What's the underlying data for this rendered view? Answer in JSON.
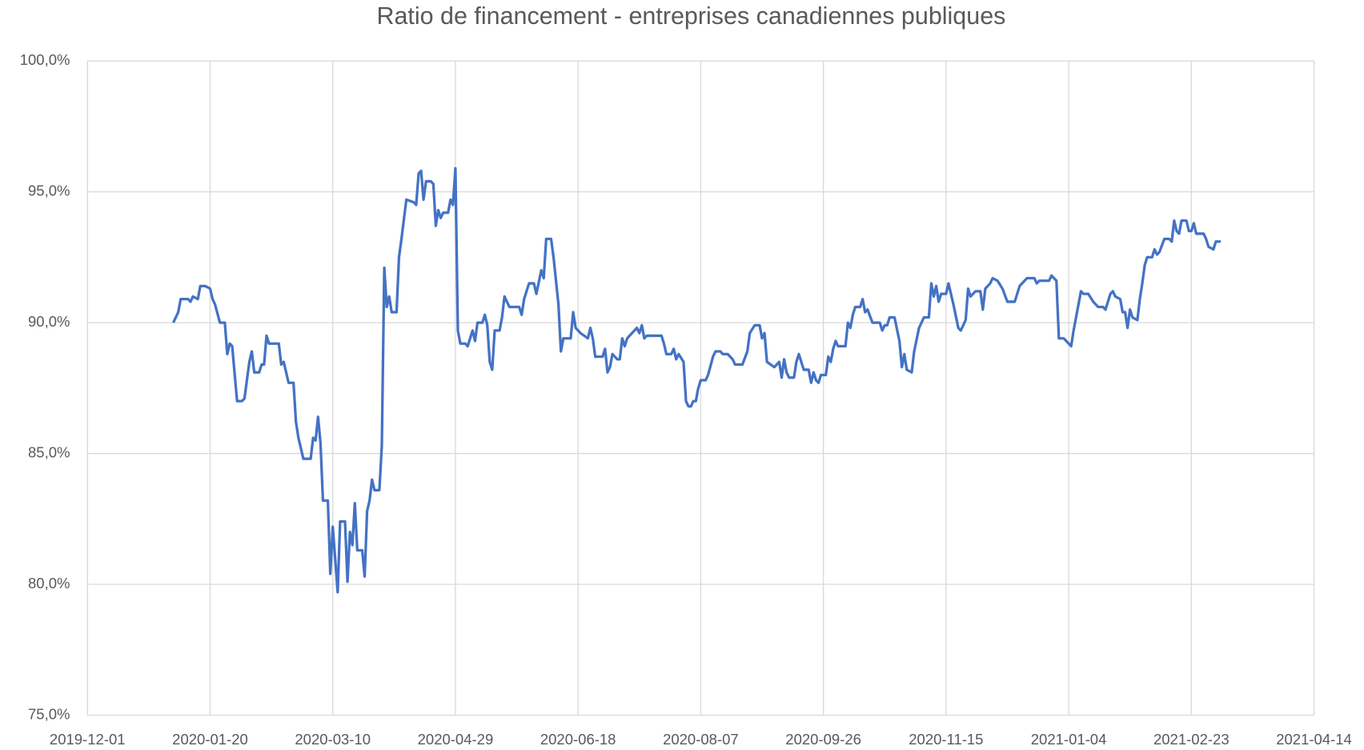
{
  "chart_data": {
    "type": "line",
    "title": "Ratio de financement - entreprises canadiennes publiques",
    "color": "#4472c4",
    "grid": true,
    "xlim": [
      "2019-12-01",
      "2021-04-14"
    ],
    "xticks": [
      "2019-12-01",
      "2020-01-20",
      "2020-03-10",
      "2020-04-29",
      "2020-06-18",
      "2020-08-07",
      "2020-09-26",
      "2020-11-15",
      "2021-01-04",
      "2021-02-23",
      "2021-04-14"
    ],
    "ylim": [
      75,
      100
    ],
    "yticks": [
      {
        "value": 75,
        "label": "75,0%"
      },
      {
        "value": 80,
        "label": "80,0%"
      },
      {
        "value": 85,
        "label": "85,0%"
      },
      {
        "value": 90,
        "label": "90,0%"
      },
      {
        "value": 95,
        "label": "95,0%"
      },
      {
        "value": 100,
        "label": "100,0%"
      }
    ],
    "x": [
      "2020-01-05",
      "2020-01-07",
      "2020-01-08",
      "2020-01-11",
      "2020-01-12",
      "2020-01-13",
      "2020-01-15",
      "2020-01-16",
      "2020-01-18",
      "2020-01-20",
      "2020-01-21",
      "2020-01-22",
      "2020-01-24",
      "2020-01-26",
      "2020-01-27",
      "2020-01-28",
      "2020-01-29",
      "2020-01-31",
      "2020-02-02",
      "2020-02-03",
      "2020-02-05",
      "2020-02-06",
      "2020-02-07",
      "2020-02-09",
      "2020-02-10",
      "2020-02-11",
      "2020-02-12",
      "2020-02-13",
      "2020-02-17",
      "2020-02-18",
      "2020-02-19",
      "2020-02-21",
      "2020-02-23",
      "2020-02-24",
      "2020-02-25",
      "2020-02-27",
      "2020-03-01",
      "2020-03-02",
      "2020-03-03",
      "2020-03-04",
      "2020-03-05",
      "2020-03-06",
      "2020-03-08",
      "2020-03-09",
      "2020-03-10",
      "2020-03-12",
      "2020-03-13",
      "2020-03-15",
      "2020-03-16",
      "2020-03-17",
      "2020-03-18",
      "2020-03-19",
      "2020-03-20",
      "2020-03-22",
      "2020-03-23",
      "2020-03-24",
      "2020-03-25",
      "2020-03-26",
      "2020-03-27",
      "2020-03-29",
      "2020-03-30",
      "2020-03-31",
      "2020-04-01",
      "2020-04-02",
      "2020-04-03",
      "2020-04-05",
      "2020-04-06",
      "2020-04-07",
      "2020-04-09",
      "2020-04-12",
      "2020-04-13",
      "2020-04-14",
      "2020-04-15",
      "2020-04-16",
      "2020-04-17",
      "2020-04-19",
      "2020-04-20",
      "2020-04-21",
      "2020-04-22",
      "2020-04-23",
      "2020-04-24",
      "2020-04-26",
      "2020-04-27",
      "2020-04-28",
      "2020-04-29",
      "2020-04-30",
      "2020-05-01",
      "2020-05-03",
      "2020-05-04",
      "2020-05-06",
      "2020-05-07",
      "2020-05-08",
      "2020-05-10",
      "2020-05-11",
      "2020-05-12",
      "2020-05-13",
      "2020-05-14",
      "2020-05-15",
      "2020-05-17",
      "2020-05-18",
      "2020-05-19",
      "2020-05-21",
      "2020-05-25",
      "2020-05-26",
      "2020-05-27",
      "2020-05-29",
      "2020-05-31",
      "2020-06-01",
      "2020-06-03",
      "2020-06-04",
      "2020-06-05",
      "2020-06-07",
      "2020-06-08",
      "2020-06-10",
      "2020-06-11",
      "2020-06-12",
      "2020-06-15",
      "2020-06-16",
      "2020-06-17",
      "2020-06-19",
      "2020-06-22",
      "2020-06-23",
      "2020-06-24",
      "2020-06-25",
      "2020-06-28",
      "2020-06-29",
      "2020-06-30",
      "2020-07-01",
      "2020-07-02",
      "2020-07-04",
      "2020-07-05",
      "2020-07-06",
      "2020-07-07",
      "2020-07-08",
      "2020-07-10",
      "2020-07-12",
      "2020-07-13",
      "2020-07-14",
      "2020-07-15",
      "2020-07-16",
      "2020-07-22",
      "2020-07-23",
      "2020-07-24",
      "2020-07-26",
      "2020-07-27",
      "2020-07-28",
      "2020-07-29",
      "2020-07-31",
      "2020-08-01",
      "2020-08-02",
      "2020-08-03",
      "2020-08-04",
      "2020-08-05",
      "2020-08-06",
      "2020-08-07",
      "2020-08-09",
      "2020-08-10",
      "2020-08-12",
      "2020-08-13",
      "2020-08-15",
      "2020-08-16",
      "2020-08-18",
      "2020-08-20",
      "2020-08-21",
      "2020-08-24",
      "2020-08-26",
      "2020-08-27",
      "2020-08-29",
      "2020-08-31",
      "2020-09-01",
      "2020-09-02",
      "2020-09-03",
      "2020-09-06",
      "2020-09-08",
      "2020-09-09",
      "2020-09-10",
      "2020-09-11",
      "2020-09-12",
      "2020-09-14",
      "2020-09-15",
      "2020-09-16",
      "2020-09-18",
      "2020-09-20",
      "2020-09-21",
      "2020-09-22",
      "2020-09-23",
      "2020-09-24",
      "2020-09-25",
      "2020-09-27",
      "2020-09-28",
      "2020-09-29",
      "2020-09-30",
      "2020-10-01",
      "2020-10-02",
      "2020-10-05",
      "2020-10-06",
      "2020-10-07",
      "2020-10-08",
      "2020-10-09",
      "2020-10-11",
      "2020-10-12",
      "2020-10-13",
      "2020-10-14",
      "2020-10-16",
      "2020-10-19",
      "2020-10-20",
      "2020-10-21",
      "2020-10-22",
      "2020-10-23",
      "2020-10-25",
      "2020-10-27",
      "2020-10-28",
      "2020-10-29",
      "2020-10-30",
      "2020-11-01",
      "2020-11-02",
      "2020-11-04",
      "2020-11-06",
      "2020-11-08",
      "2020-11-09",
      "2020-11-10",
      "2020-11-11",
      "2020-11-12",
      "2020-11-13",
      "2020-11-15",
      "2020-11-16",
      "2020-11-18",
      "2020-11-20",
      "2020-11-21",
      "2020-11-23",
      "2020-11-24",
      "2020-11-25",
      "2020-11-27",
      "2020-11-29",
      "2020-11-30",
      "2020-12-01",
      "2020-12-03",
      "2020-12-04",
      "2020-12-06",
      "2020-12-08",
      "2020-12-10",
      "2020-12-13",
      "2020-12-15",
      "2020-12-18",
      "2020-12-21",
      "2020-12-22",
      "2020-12-23",
      "2020-12-27",
      "2020-12-28",
      "2020-12-30",
      "2020-12-31",
      "2021-01-02",
      "2021-01-04",
      "2021-01-05",
      "2021-01-06",
      "2021-01-08",
      "2021-01-09",
      "2021-01-10",
      "2021-01-12",
      "2021-01-14",
      "2021-01-16",
      "2021-01-18",
      "2021-01-19",
      "2021-01-20",
      "2021-01-21",
      "2021-01-22",
      "2021-01-23",
      "2021-01-25",
      "2021-01-26",
      "2021-01-27",
      "2021-01-28",
      "2021-01-29",
      "2021-01-30",
      "2021-02-01",
      "2021-02-02",
      "2021-02-03",
      "2021-02-04",
      "2021-02-05",
      "2021-02-07",
      "2021-02-08",
      "2021-02-09",
      "2021-02-10",
      "2021-02-12",
      "2021-02-14",
      "2021-02-15",
      "2021-02-16",
      "2021-02-17",
      "2021-02-18",
      "2021-02-19",
      "2021-02-21",
      "2021-02-22",
      "2021-02-23",
      "2021-02-24",
      "2021-02-25",
      "2021-02-28",
      "2021-03-01",
      "2021-03-02",
      "2021-03-04",
      "2021-03-05",
      "2021-03-07"
    ],
    "values": [
      90.0,
      90.4,
      90.9,
      90.9,
      90.8,
      91.0,
      90.9,
      91.4,
      91.4,
      91.3,
      90.9,
      90.7,
      90.0,
      90.0,
      88.8,
      89.2,
      89.1,
      87.0,
      87.0,
      87.1,
      88.5,
      88.9,
      88.1,
      88.1,
      88.4,
      88.4,
      89.5,
      89.2,
      89.2,
      88.4,
      88.5,
      87.7,
      87.7,
      86.2,
      85.6,
      84.8,
      84.8,
      85.6,
      85.5,
      86.4,
      85.4,
      83.2,
      83.2,
      80.4,
      82.2,
      79.7,
      82.4,
      82.4,
      80.1,
      82.0,
      81.5,
      83.1,
      81.3,
      81.3,
      80.3,
      82.8,
      83.2,
      84.0,
      83.6,
      83.6,
      85.3,
      92.1,
      90.6,
      91.0,
      90.4,
      90.4,
      92.5,
      93.2,
      94.7,
      94.6,
      94.5,
      95.7,
      95.8,
      94.7,
      95.4,
      95.4,
      95.3,
      93.7,
      94.3,
      94.0,
      94.2,
      94.2,
      94.7,
      94.5,
      95.9,
      89.7,
      89.2,
      89.2,
      89.1,
      89.7,
      89.3,
      90.0,
      90.0,
      90.3,
      89.9,
      88.5,
      88.2,
      89.7,
      89.7,
      90.2,
      91.0,
      90.6,
      90.6,
      90.3,
      90.9,
      91.5,
      91.5,
      91.1,
      92.0,
      91.7,
      93.2,
      93.2,
      92.5,
      90.7,
      88.9,
      89.4,
      89.4,
      90.4,
      89.8,
      89.6,
      89.4,
      89.8,
      89.4,
      88.7,
      88.7,
      89.0,
      88.1,
      88.3,
      88.8,
      88.6,
      88.6,
      89.4,
      89.1,
      89.4,
      89.6,
      89.8,
      89.6,
      89.9,
      89.4,
      89.5,
      89.5,
      89.2,
      88.8,
      88.8,
      89.0,
      88.6,
      88.8,
      88.5,
      87.0,
      86.8,
      86.8,
      87.0,
      87.0,
      87.5,
      87.8,
      87.8,
      88.0,
      88.7,
      88.9,
      88.9,
      88.8,
      88.8,
      88.6,
      88.4,
      88.4,
      88.9,
      89.6,
      89.9,
      89.9,
      89.4,
      89.6,
      88.5,
      88.3,
      88.5,
      87.9,
      88.6,
      88.1,
      87.9,
      87.9,
      88.5,
      88.8,
      88.2,
      88.2,
      87.7,
      88.1,
      87.8,
      87.7,
      88.0,
      88.0,
      88.7,
      88.5,
      89.0,
      89.3,
      89.1,
      89.1,
      90.0,
      89.8,
      90.3,
      90.6,
      90.6,
      90.9,
      90.4,
      90.5,
      90.0,
      90.0,
      89.7,
      89.9,
      89.9,
      90.2,
      90.2,
      89.3,
      88.3,
      88.8,
      88.2,
      88.1,
      88.9,
      89.8,
      90.2,
      90.2,
      91.5,
      91.0,
      91.4,
      90.8,
      91.1,
      91.1,
      91.5,
      90.7,
      89.8,
      89.7,
      90.1,
      91.3,
      91.0,
      91.2,
      91.2,
      90.5,
      91.3,
      91.5,
      91.7,
      91.6,
      91.3,
      90.8,
      90.8,
      91.4,
      91.7,
      91.7,
      91.5,
      91.6,
      91.6,
      91.8,
      91.6,
      89.4,
      89.4,
      89.2,
      89.1,
      89.7,
      90.7,
      91.2,
      91.1,
      91.1,
      90.8,
      90.6,
      90.6,
      90.5,
      90.8,
      91.1,
      91.2,
      91.0,
      90.9,
      90.4,
      90.4,
      89.8,
      90.5,
      90.2,
      90.1,
      90.9,
      91.5,
      92.2,
      92.5,
      92.5,
      92.8,
      92.6,
      92.7,
      93.2,
      93.2,
      93.1,
      93.9,
      93.5,
      93.4,
      93.9,
      93.9,
      93.5,
      93.5,
      93.8,
      93.4,
      93.4,
      93.2,
      92.9,
      92.8,
      93.1,
      93.1
    ]
  }
}
